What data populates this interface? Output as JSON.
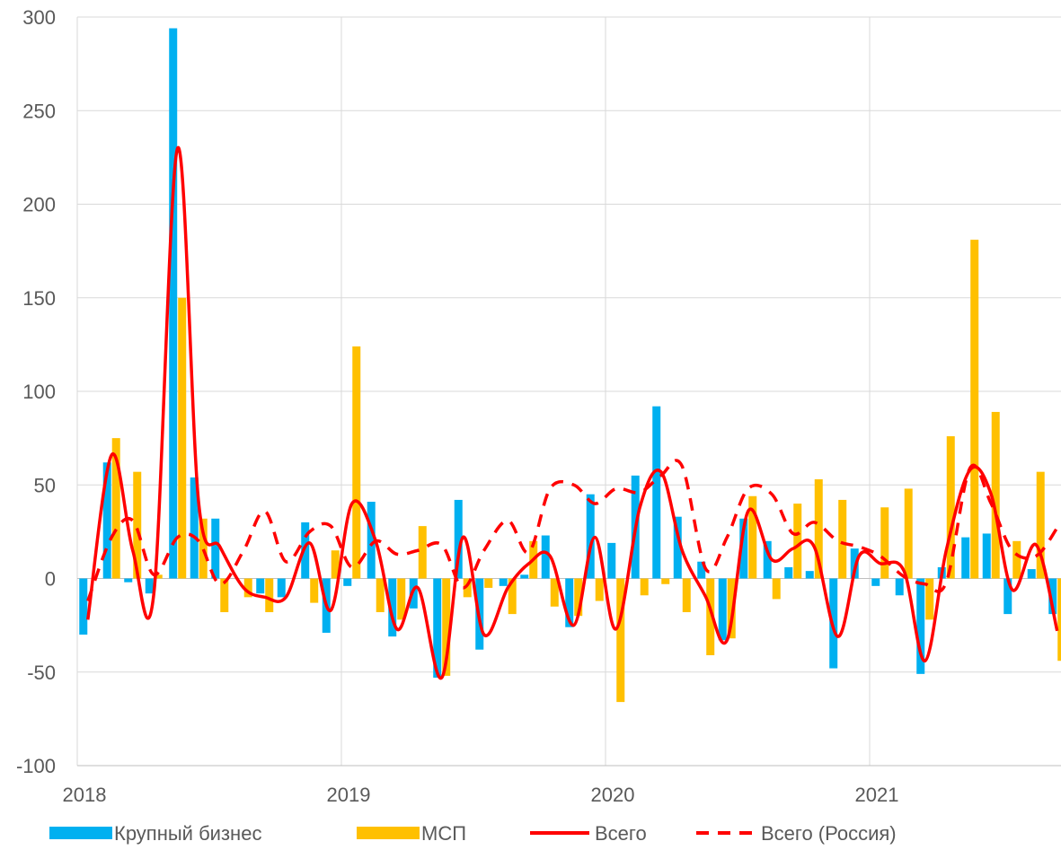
{
  "chart_data": {
    "type": "bar",
    "x": [
      2018.04,
      2018.13,
      2018.21,
      2018.29,
      2018.38,
      2018.46,
      2018.54,
      2018.63,
      2018.71,
      2018.79,
      2018.88,
      2018.96,
      2019.04,
      2019.13,
      2019.21,
      2019.29,
      2019.38,
      2019.46,
      2019.54,
      2019.63,
      2019.71,
      2019.79,
      2019.88,
      2019.96,
      2020.04,
      2020.13,
      2020.21,
      2020.29,
      2020.38,
      2020.46,
      2020.54,
      2020.63,
      2020.71,
      2020.79,
      2020.88,
      2020.96,
      2021.04,
      2021.13,
      2021.21,
      2021.29,
      2021.38,
      2021.46,
      2021.54,
      2021.63,
      2021.71
    ],
    "xlim": [
      2018,
      2021.75
    ],
    "xticks": [
      2018,
      2019,
      2020,
      2021
    ],
    "ylim": [
      -100,
      300
    ],
    "yticks": [
      -100,
      -50,
      0,
      50,
      100,
      150,
      200,
      250,
      300
    ],
    "grid": true,
    "series": [
      {
        "name": "Крупный бизнес",
        "type": "bar",
        "color": "#00b0f0",
        "values": [
          -30,
          62,
          -2,
          -8,
          294,
          54,
          32,
          0,
          -8,
          -10,
          30,
          -29,
          -4,
          41,
          -31,
          -16,
          -53,
          42,
          -38,
          -4,
          2,
          23,
          -26,
          45,
          19,
          55,
          92,
          33,
          9,
          -33,
          32,
          20,
          6,
          4,
          -48,
          16,
          -4,
          -9,
          -51,
          6,
          22,
          24,
          -19,
          5,
          -19
        ]
      },
      {
        "name": "МСП",
        "type": "bar",
        "color": "#ffc000",
        "values": [
          0,
          75,
          57,
          2,
          150,
          32,
          -18,
          -10,
          -18,
          0,
          -13,
          15,
          124,
          -18,
          -22,
          28,
          -52,
          -10,
          -5,
          -19,
          20,
          -15,
          -20,
          -12,
          -66,
          -9,
          -3,
          -18,
          -41,
          -32,
          44,
          -11,
          40,
          53,
          42,
          0,
          38,
          48,
          -22,
          76,
          181,
          89,
          20,
          57,
          -44
        ]
      },
      {
        "name": "Всего",
        "type": "line",
        "color": "#ff0000",
        "values": [
          -22,
          66,
          15,
          -8,
          230,
          40,
          17,
          -5,
          -10,
          -10,
          19,
          -17,
          40,
          20,
          -27,
          -5,
          -53,
          22,
          -30,
          -5,
          8,
          12,
          -25,
          22,
          -27,
          38,
          57,
          15,
          -10,
          -33,
          36,
          10,
          16,
          17,
          -31,
          12,
          8,
          4,
          -44,
          15,
          58,
          45,
          -6,
          18,
          -28
        ]
      },
      {
        "name": "Всего (Россия)",
        "type": "line",
        "dashed": true,
        "color": "#ff0000",
        "values": [
          -12,
          22,
          31,
          2,
          22,
          20,
          -3,
          15,
          36,
          9,
          25,
          28,
          6,
          20,
          13,
          15,
          18,
          -5,
          15,
          31,
          14,
          48,
          50,
          40,
          48,
          46,
          55,
          60,
          5,
          22,
          48,
          45,
          24,
          30,
          20,
          17,
          12,
          1,
          -3,
          -2,
          59,
          40,
          15,
          12,
          27
        ]
      }
    ]
  }
}
